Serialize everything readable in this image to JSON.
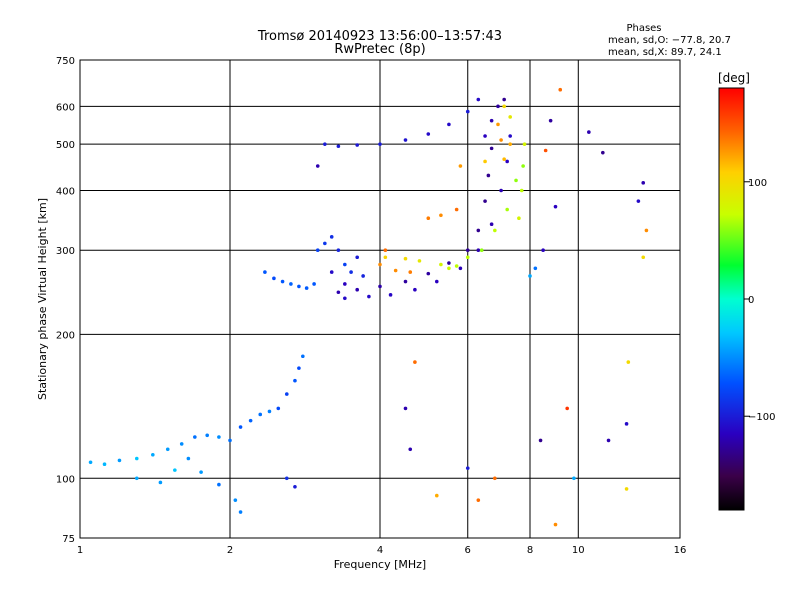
{
  "header": {
    "title": "Tromsø 20140923 13:56:00–13:57:43",
    "subtitle": "RwPretec (8p)",
    "phases_title": "Phases",
    "phases_o": "mean, sd,O: −77.8, 20.7",
    "phases_x": "mean, sd,X:  89.7, 24.1"
  },
  "chart_data": {
    "type": "scatter",
    "title": "Tromsø 20140923 13:56:00–13:57:43",
    "subtitle": "RwPretec (8p)",
    "xlabel": "Frequency [MHz]",
    "ylabel": "Stationary phase Virtual Height [km]",
    "x_scale": "log",
    "y_scale": "log",
    "xlim": [
      1,
      16
    ],
    "ylim": [
      75,
      750
    ],
    "x_ticks": [
      1,
      2,
      4,
      6,
      8,
      10,
      16
    ],
    "y_ticks": [
      75,
      100,
      200,
      300,
      400,
      500,
      600,
      750
    ],
    "grid": true,
    "colorbar": {
      "label": "[deg]",
      "range": [
        -180,
        180
      ],
      "ticks": [
        100,
        0,
        -100
      ]
    },
    "series": [
      {
        "points": [
          [
            1.05,
            108,
            -40
          ],
          [
            1.12,
            107,
            -35
          ],
          [
            1.2,
            109,
            -45
          ],
          [
            1.3,
            110,
            -30
          ],
          [
            1.4,
            112,
            -40
          ],
          [
            1.5,
            115,
            -45
          ],
          [
            1.6,
            118,
            -50
          ],
          [
            1.7,
            122,
            -60
          ],
          [
            1.8,
            123,
            -55
          ],
          [
            1.9,
            122,
            -50
          ],
          [
            2.0,
            120,
            -60
          ],
          [
            2.1,
            128,
            -70
          ],
          [
            2.2,
            132,
            -65
          ],
          [
            2.3,
            136,
            -60
          ],
          [
            2.4,
            138,
            -55
          ],
          [
            2.5,
            140,
            -75
          ],
          [
            2.6,
            150,
            -80
          ],
          [
            2.7,
            160,
            -70
          ],
          [
            2.75,
            170,
            -75
          ],
          [
            2.8,
            180,
            -60
          ],
          [
            1.3,
            100,
            -40
          ],
          [
            1.45,
            98,
            -45
          ],
          [
            1.55,
            104,
            -30
          ],
          [
            1.65,
            110,
            -50
          ],
          [
            1.75,
            103,
            -45
          ],
          [
            1.9,
            97,
            -60
          ],
          [
            2.05,
            90,
            -50
          ],
          [
            2.1,
            85,
            -55
          ],
          [
            2.6,
            100,
            -90
          ],
          [
            2.7,
            96,
            -100
          ],
          [
            2.35,
            270,
            -70
          ],
          [
            2.45,
            262,
            -75
          ],
          [
            2.55,
            258,
            -70
          ],
          [
            2.65,
            255,
            -65
          ],
          [
            2.75,
            252,
            -70
          ],
          [
            2.85,
            250,
            -68
          ],
          [
            2.95,
            255,
            -70
          ],
          [
            3.0,
            300,
            -80
          ],
          [
            3.1,
            310,
            -85
          ],
          [
            3.2,
            320,
            -90
          ],
          [
            3.3,
            300,
            -95
          ],
          [
            3.4,
            280,
            -80
          ],
          [
            3.5,
            270,
            -90
          ],
          [
            3.6,
            290,
            -100
          ],
          [
            3.2,
            270,
            -110
          ],
          [
            3.4,
            255,
            -115
          ],
          [
            3.7,
            265,
            -95
          ],
          [
            3.3,
            245,
            -120
          ],
          [
            3.6,
            248,
            -120
          ],
          [
            4.0,
            252,
            -122
          ],
          [
            4.5,
            258,
            -125
          ],
          [
            5.0,
            268,
            -125
          ],
          [
            5.5,
            282,
            -125
          ],
          [
            6.0,
            300,
            -128
          ],
          [
            6.3,
            330,
            -130
          ],
          [
            6.5,
            380,
            -130
          ],
          [
            6.6,
            430,
            -130
          ],
          [
            6.7,
            490,
            -128
          ],
          [
            3.4,
            238,
            -110
          ],
          [
            3.8,
            240,
            -110
          ],
          [
            4.2,
            242,
            -112
          ],
          [
            4.7,
            248,
            -115
          ],
          [
            5.2,
            258,
            -115
          ],
          [
            5.8,
            275,
            -118
          ],
          [
            6.3,
            300,
            -120
          ],
          [
            6.7,
            340,
            -120
          ],
          [
            7.0,
            400,
            -118
          ],
          [
            7.2,
            460,
            -115
          ],
          [
            7.3,
            520,
            -110
          ],
          [
            3.1,
            500,
            -100
          ],
          [
            3.3,
            495,
            -100
          ],
          [
            3.6,
            498,
            -102
          ],
          [
            4.0,
            500,
            -100
          ],
          [
            4.5,
            510,
            -105
          ],
          [
            5.0,
            525,
            -110
          ],
          [
            5.5,
            550,
            -110
          ],
          [
            6.0,
            585,
            -100
          ],
          [
            6.3,
            620,
            -110
          ],
          [
            6.5,
            520,
            -115
          ],
          [
            6.7,
            560,
            -120
          ],
          [
            6.9,
            600,
            -125
          ],
          [
            7.1,
            620,
            -130
          ],
          [
            7.6,
            350,
            80
          ],
          [
            7.7,
            400,
            70
          ],
          [
            7.75,
            450,
            60
          ],
          [
            7.8,
            500,
            80
          ],
          [
            7.3,
            570,
            90
          ],
          [
            7.1,
            600,
            100
          ],
          [
            6.4,
            300,
            60
          ],
          [
            6.8,
            330,
            70
          ],
          [
            7.2,
            365,
            65
          ],
          [
            7.5,
            420,
            60
          ],
          [
            5.5,
            275,
            75
          ],
          [
            6.0,
            290,
            70
          ],
          [
            4.0,
            280,
            130
          ],
          [
            4.3,
            272,
            130
          ],
          [
            4.6,
            270,
            135
          ],
          [
            4.1,
            300,
            140
          ],
          [
            5.0,
            350,
            135
          ],
          [
            5.3,
            355,
            130
          ],
          [
            5.7,
            365,
            140
          ],
          [
            6.9,
            550,
            125
          ],
          [
            7.0,
            510,
            130
          ],
          [
            7.3,
            500,
            120
          ],
          [
            7.1,
            465,
            115
          ],
          [
            4.1,
            290,
            105
          ],
          [
            4.5,
            288,
            100
          ],
          [
            4.8,
            285,
            90
          ],
          [
            5.3,
            280,
            80
          ],
          [
            5.7,
            278,
            70
          ],
          [
            6.5,
            460,
            110
          ],
          [
            5.8,
            450,
            125
          ],
          [
            8.8,
            560,
            -125
          ],
          [
            9.0,
            370,
            -115
          ],
          [
            10.5,
            530,
            -120
          ],
          [
            11.2,
            480,
            -130
          ],
          [
            13.2,
            380,
            -110
          ],
          [
            13.5,
            290,
            100
          ],
          [
            13.7,
            330,
            130
          ],
          [
            8.5,
            300,
            -115
          ],
          [
            8.2,
            275,
            -60
          ],
          [
            8.0,
            265,
            -40
          ],
          [
            9.2,
            650,
            140
          ],
          [
            8.6,
            485,
            150
          ],
          [
            8.4,
            120,
            -130
          ],
          [
            9.5,
            140,
            160
          ],
          [
            11.5,
            120,
            -120
          ],
          [
            12.5,
            130,
            -110
          ],
          [
            9.0,
            80,
            130
          ],
          [
            12.5,
            95,
            100
          ],
          [
            12.6,
            175,
            100
          ],
          [
            4.7,
            175,
            140
          ],
          [
            4.5,
            140,
            -120
          ],
          [
            4.6,
            115,
            -120
          ],
          [
            6.0,
            105,
            -100
          ],
          [
            6.8,
            100,
            140
          ],
          [
            6.3,
            90,
            140
          ],
          [
            5.2,
            92,
            120
          ],
          [
            9.8,
            100,
            -40
          ],
          [
            13.5,
            415,
            -120
          ],
          [
            3.0,
            450,
            -120
          ]
        ]
      }
    ]
  }
}
